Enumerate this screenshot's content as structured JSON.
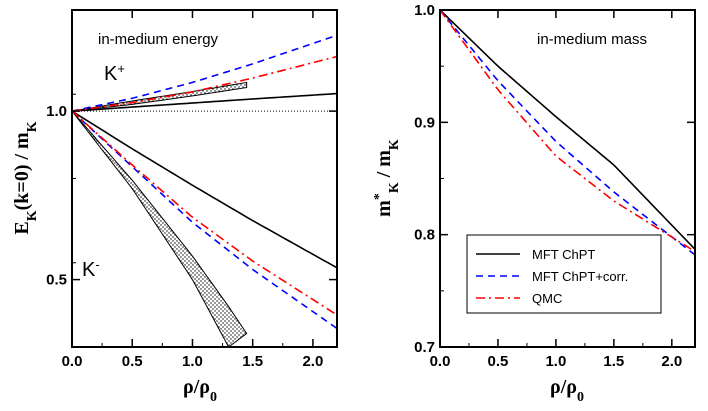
{
  "chart_data": [
    {
      "type": "line",
      "title": "",
      "annotations": {
        "top": "in-medium energy",
        "upper": "K+",
        "lower": "K-"
      },
      "xlabel": "ρ/ρ0",
      "ylabel": "EK(k=0) / mK",
      "xlim": [
        0,
        2.2
      ],
      "ylim": [
        0.3,
        1.3
      ],
      "xticks": [
        "0.0",
        "0.5",
        "1.0",
        "1.5",
        "2.0"
      ],
      "yticks": [
        "0.5",
        "1.0"
      ],
      "grid": false,
      "series": [
        {
          "key": "mft_chpt",
          "x": [
            0,
            0.5,
            1.0,
            1.5,
            2.2
          ],
          "y": [
            1.0,
            1.012,
            1.024,
            1.036,
            1.052
          ]
        },
        {
          "key": "mft_chpt_corr",
          "x": [
            0,
            0.5,
            1.0,
            1.5,
            2.2
          ],
          "y": [
            1.0,
            1.038,
            1.085,
            1.14,
            1.225
          ]
        },
        {
          "key": "qmc",
          "x": [
            0,
            0.5,
            1.0,
            1.5,
            2.2
          ],
          "y": [
            1.0,
            1.025,
            1.057,
            1.098,
            1.162
          ]
        },
        {
          "key": "mft_chpt",
          "x": [
            0,
            0.5,
            1.0,
            1.5,
            2.2
          ],
          "y": [
            1.0,
            0.888,
            0.78,
            0.675,
            0.535
          ]
        },
        {
          "key": "mft_chpt_corr",
          "x": [
            0,
            0.5,
            1.0,
            1.5,
            2.2
          ],
          "y": [
            1.0,
            0.835,
            0.67,
            0.53,
            0.355
          ]
        },
        {
          "key": "qmc",
          "x": [
            0,
            0.5,
            1.0,
            1.5,
            2.2
          ],
          "y": [
            1.0,
            0.84,
            0.685,
            0.555,
            0.395
          ]
        }
      ],
      "bands": [
        {
          "upper": {
            "x": [
              0,
              0.5,
              1.0,
              1.45
            ],
            "y": [
              1.0,
              1.03,
              1.058,
              1.085
            ]
          },
          "lower": {
            "x": [
              0,
              0.5,
              1.0,
              1.45
            ],
            "y": [
              1.0,
              1.02,
              1.045,
              1.07
            ]
          }
        },
        {
          "upper": {
            "x": [
              0,
              0.5,
              1.0,
              1.3
            ],
            "y": [
              1.0,
              0.77,
              0.5,
              0.3
            ]
          },
          "lower": {
            "x": [
              0,
              0.5,
              1.0,
              1.3,
              1.45
            ],
            "y": [
              1.0,
              0.795,
              0.57,
              0.42,
              0.34
            ]
          }
        }
      ],
      "reference": {
        "y": 1.0,
        "style": "dotted"
      }
    },
    {
      "type": "line",
      "title": "",
      "annotations": {
        "top": "in-medium mass"
      },
      "xlabel": "ρ/ρ0",
      "ylabel": "m*K / mK",
      "xlim": [
        0,
        2.2
      ],
      "ylim": [
        0.7,
        1.0
      ],
      "xticks": [
        "0.0",
        "0.5",
        "1.0",
        "1.5",
        "2.0"
      ],
      "yticks": [
        "0.7",
        "0.8",
        "0.9",
        "1.0"
      ],
      "grid": false,
      "legend_position": "bottom-left",
      "series": [
        {
          "key": "mft_chpt",
          "name": "MFT ChPT",
          "x": [
            0,
            0.5,
            1.0,
            1.5,
            2.2
          ],
          "y": [
            1.0,
            0.95,
            0.905,
            0.862,
            0.787
          ]
        },
        {
          "key": "mft_chpt_corr",
          "name": "MFT ChPT+corr.",
          "x": [
            0,
            0.5,
            1.0,
            1.5,
            2.2
          ],
          "y": [
            1.0,
            0.937,
            0.883,
            0.838,
            0.782
          ]
        },
        {
          "key": "qmc",
          "name": "QMC",
          "x": [
            0,
            0.5,
            1.0,
            1.5,
            2.2
          ],
          "y": [
            1.0,
            0.929,
            0.87,
            0.83,
            0.785
          ]
        }
      ]
    }
  ],
  "styles": {
    "mft_chpt": {
      "color": "#000000",
      "dash": ""
    },
    "mft_chpt_corr": {
      "color": "#0000ff",
      "dash": "7,5"
    },
    "qmc": {
      "color": "#ff0000",
      "dash": "9,4,2,4"
    }
  }
}
